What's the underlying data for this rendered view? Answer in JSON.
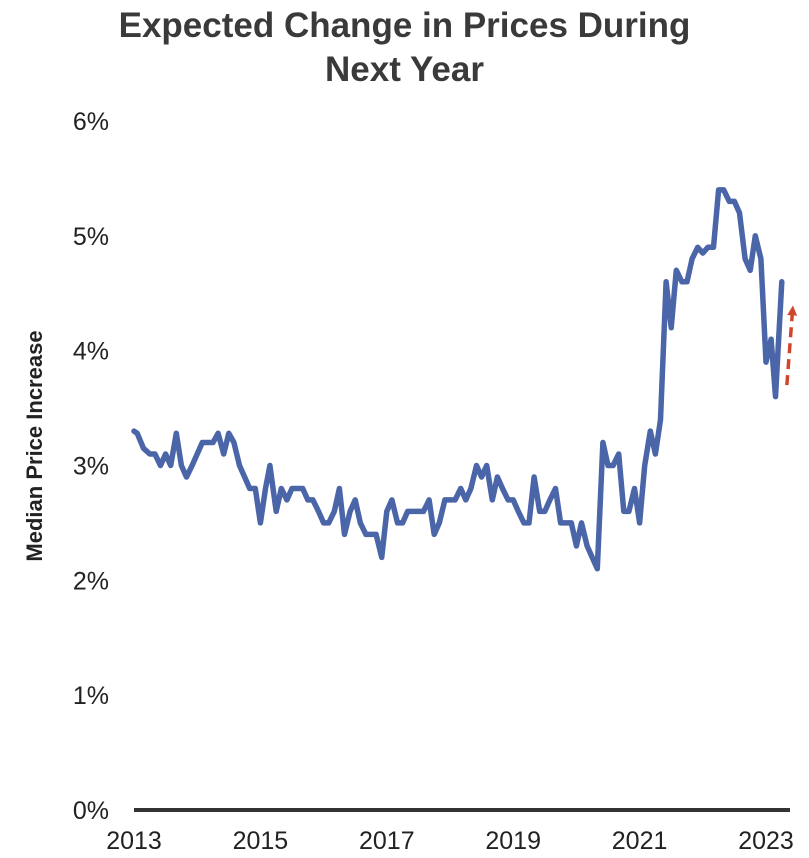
{
  "chart_data": {
    "type": "line",
    "title_lines": [
      "Expected Change in Prices During",
      "Next Year"
    ],
    "ylabel": "Median Price Increase",
    "xlabel": "",
    "ylim": [
      0,
      6
    ],
    "xlim": [
      2013,
      2023.2
    ],
    "y_ticks": [
      "0%",
      "1%",
      "2%",
      "3%",
      "4%",
      "5%",
      "6%"
    ],
    "x_ticks": [
      "2013",
      "2015",
      "2017",
      "2019",
      "2021",
      "2023"
    ],
    "grid": false,
    "series": [
      {
        "color": "#4a65a8",
        "points": [
          [
            2013.0,
            3.3
          ],
          [
            2013.05,
            3.28
          ],
          [
            2013.15,
            3.15
          ],
          [
            2013.25,
            3.1
          ],
          [
            2013.33,
            3.1
          ],
          [
            2013.42,
            3.0
          ],
          [
            2013.5,
            3.1
          ],
          [
            2013.58,
            3.0
          ],
          [
            2013.67,
            3.28
          ],
          [
            2013.75,
            3.0
          ],
          [
            2013.83,
            2.9
          ],
          [
            2013.92,
            3.0
          ],
          [
            2014.0,
            3.1
          ],
          [
            2014.08,
            3.2
          ],
          [
            2014.17,
            3.2
          ],
          [
            2014.25,
            3.2
          ],
          [
            2014.33,
            3.28
          ],
          [
            2014.42,
            3.1
          ],
          [
            2014.5,
            3.28
          ],
          [
            2014.58,
            3.2
          ],
          [
            2014.67,
            3.0
          ],
          [
            2014.75,
            2.9
          ],
          [
            2014.83,
            2.8
          ],
          [
            2014.92,
            2.8
          ],
          [
            2015.0,
            2.5
          ],
          [
            2015.08,
            2.8
          ],
          [
            2015.15,
            3.0
          ],
          [
            2015.25,
            2.6
          ],
          [
            2015.33,
            2.8
          ],
          [
            2015.42,
            2.7
          ],
          [
            2015.5,
            2.8
          ],
          [
            2015.58,
            2.8
          ],
          [
            2015.67,
            2.8
          ],
          [
            2015.75,
            2.7
          ],
          [
            2015.83,
            2.7
          ],
          [
            2015.92,
            2.6
          ],
          [
            2016.0,
            2.5
          ],
          [
            2016.08,
            2.5
          ],
          [
            2016.17,
            2.6
          ],
          [
            2016.25,
            2.8
          ],
          [
            2016.33,
            2.4
          ],
          [
            2016.42,
            2.6
          ],
          [
            2016.5,
            2.7
          ],
          [
            2016.58,
            2.5
          ],
          [
            2016.67,
            2.4
          ],
          [
            2016.75,
            2.4
          ],
          [
            2016.83,
            2.4
          ],
          [
            2016.92,
            2.2
          ],
          [
            2017.0,
            2.6
          ],
          [
            2017.08,
            2.7
          ],
          [
            2017.17,
            2.5
          ],
          [
            2017.25,
            2.5
          ],
          [
            2017.33,
            2.6
          ],
          [
            2017.42,
            2.6
          ],
          [
            2017.5,
            2.6
          ],
          [
            2017.58,
            2.6
          ],
          [
            2017.67,
            2.7
          ],
          [
            2017.75,
            2.4
          ],
          [
            2017.83,
            2.5
          ],
          [
            2017.92,
            2.7
          ],
          [
            2018.0,
            2.7
          ],
          [
            2018.08,
            2.7
          ],
          [
            2018.17,
            2.8
          ],
          [
            2018.25,
            2.7
          ],
          [
            2018.33,
            2.8
          ],
          [
            2018.42,
            3.0
          ],
          [
            2018.5,
            2.9
          ],
          [
            2018.58,
            3.0
          ],
          [
            2018.67,
            2.7
          ],
          [
            2018.75,
            2.9
          ],
          [
            2018.83,
            2.8
          ],
          [
            2018.92,
            2.7
          ],
          [
            2019.0,
            2.7
          ],
          [
            2019.08,
            2.6
          ],
          [
            2019.17,
            2.5
          ],
          [
            2019.25,
            2.5
          ],
          [
            2019.33,
            2.9
          ],
          [
            2019.42,
            2.6
          ],
          [
            2019.5,
            2.6
          ],
          [
            2019.58,
            2.7
          ],
          [
            2019.67,
            2.8
          ],
          [
            2019.75,
            2.5
          ],
          [
            2019.83,
            2.5
          ],
          [
            2019.92,
            2.5
          ],
          [
            2020.0,
            2.3
          ],
          [
            2020.08,
            2.5
          ],
          [
            2020.17,
            2.3
          ],
          [
            2020.25,
            2.2
          ],
          [
            2020.33,
            2.1
          ],
          [
            2020.42,
            3.2
          ],
          [
            2020.5,
            3.0
          ],
          [
            2020.58,
            3.0
          ],
          [
            2020.67,
            3.1
          ],
          [
            2020.75,
            2.6
          ],
          [
            2020.83,
            2.6
          ],
          [
            2020.92,
            2.8
          ],
          [
            2021.0,
            2.5
          ],
          [
            2021.08,
            3.0
          ],
          [
            2021.17,
            3.3
          ],
          [
            2021.25,
            3.1
          ],
          [
            2021.33,
            3.4
          ],
          [
            2021.42,
            4.6
          ],
          [
            2021.5,
            4.2
          ],
          [
            2021.58,
            4.7
          ],
          [
            2021.67,
            4.6
          ],
          [
            2021.75,
            4.6
          ],
          [
            2021.83,
            4.8
          ],
          [
            2021.92,
            4.9
          ],
          [
            2022.0,
            4.85
          ],
          [
            2022.08,
            4.9
          ],
          [
            2022.17,
            4.9
          ],
          [
            2022.25,
            5.4
          ],
          [
            2022.33,
            5.4
          ],
          [
            2022.42,
            5.3
          ],
          [
            2022.5,
            5.3
          ],
          [
            2022.58,
            5.2
          ],
          [
            2022.67,
            4.8
          ],
          [
            2022.75,
            4.7
          ],
          [
            2022.83,
            5.0
          ],
          [
            2022.92,
            4.8
          ],
          [
            2023.0,
            3.9
          ],
          [
            2023.08,
            4.1
          ],
          [
            2023.15,
            3.6
          ],
          [
            2023.25,
            4.6
          ]
        ]
      }
    ],
    "arrow": {
      "color": "#d0462c",
      "from": [
        2023.33,
        3.7
      ],
      "to": [
        2023.42,
        4.35
      ],
      "dashed": true
    }
  }
}
